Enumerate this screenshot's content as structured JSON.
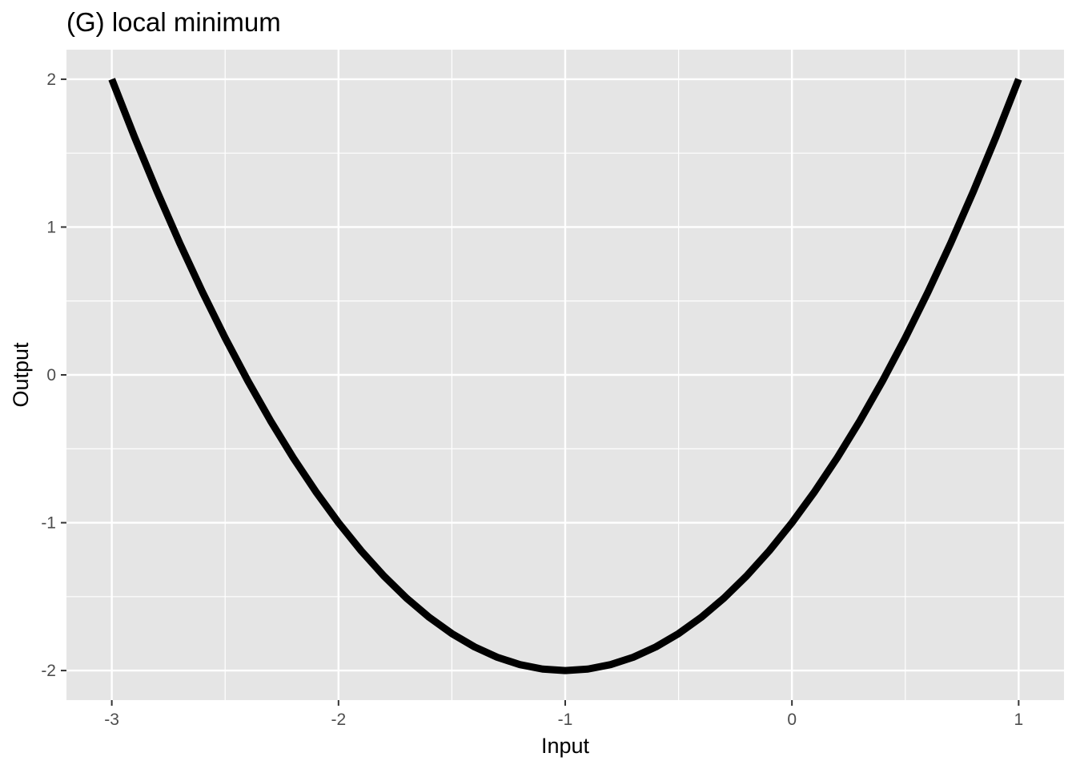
{
  "chart_data": {
    "type": "line",
    "title": "(G) local minimum",
    "xlabel": "Input",
    "ylabel": "Output",
    "xlim": [
      -3.2,
      1.2
    ],
    "ylim": [
      -2.2,
      2.2
    ],
    "x_ticks": [
      -3,
      -2,
      -1,
      0,
      1
    ],
    "x_tick_labels": [
      "-3",
      "-2",
      "-1",
      "0",
      "1"
    ],
    "y_ticks": [
      -2,
      -1,
      0,
      1,
      2
    ],
    "y_tick_labels": [
      "-2",
      "-1",
      "0",
      "1",
      "2"
    ],
    "x_minor": [
      -2.5,
      -1.5,
      -0.5,
      0.5
    ],
    "y_minor": [
      -1.5,
      -0.5,
      0.5,
      1.5
    ],
    "grid": true,
    "series": [
      {
        "color": "#000000",
        "x": [
          -3.0,
          -2.9,
          -2.8,
          -2.7,
          -2.6,
          -2.5,
          -2.4,
          -2.3,
          -2.2,
          -2.1,
          -2.0,
          -1.9,
          -1.8,
          -1.7,
          -1.6,
          -1.5,
          -1.4,
          -1.3,
          -1.2,
          -1.1,
          -1.0,
          -0.9,
          -0.8,
          -0.7,
          -0.6,
          -0.5,
          -0.4,
          -0.3,
          -0.2,
          -0.1,
          0.0,
          0.1,
          0.2,
          0.3,
          0.4,
          0.5,
          0.6,
          0.7,
          0.8,
          0.9,
          1.0
        ],
        "y": [
          2.0,
          1.61,
          1.24,
          0.89,
          0.56,
          0.25,
          -0.04,
          -0.31,
          -0.56,
          -0.79,
          -1.0,
          -1.19,
          -1.36,
          -1.51,
          -1.64,
          -1.75,
          -1.84,
          -1.91,
          -1.96,
          -1.99,
          -2.0,
          -1.99,
          -1.96,
          -1.91,
          -1.84,
          -1.75,
          -1.64,
          -1.51,
          -1.36,
          -1.19,
          -1.0,
          -0.79,
          -0.56,
          -0.31,
          -0.04,
          0.25,
          0.56,
          0.89,
          1.24,
          1.61,
          2.0
        ]
      }
    ],
    "colors": {
      "panel": "#e5e5e5",
      "grid": "#ffffff",
      "tick": "#333333",
      "tick_label": "#4d4d4d",
      "line": "#000000"
    }
  }
}
